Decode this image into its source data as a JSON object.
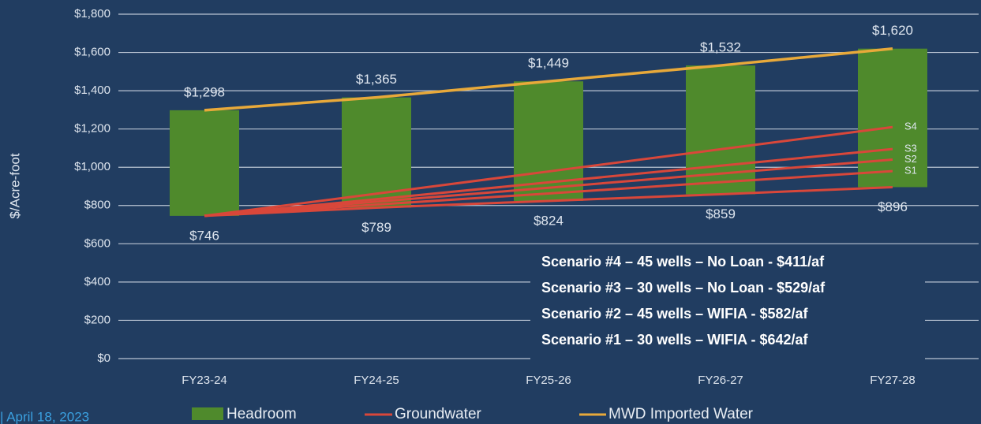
{
  "chart_data": {
    "type": "bar",
    "ylabel": "$/Acre-foot",
    "categories": [
      "FY23-24",
      "FY24-25",
      "FY25-26",
      "FY26-27",
      "FY27-28"
    ],
    "ylim": [
      0,
      1800
    ],
    "yticks": [
      {
        "value": 0,
        "label": "$0"
      },
      {
        "value": 200,
        "label": "$200"
      },
      {
        "value": 400,
        "label": "$400"
      },
      {
        "value": 600,
        "label": "$600"
      },
      {
        "value": 800,
        "label": "$800"
      },
      {
        "value": 1000,
        "label": "$1,000"
      },
      {
        "value": 1200,
        "label": "$1,200"
      },
      {
        "value": 1400,
        "label": "$1,400"
      },
      {
        "value": 1600,
        "label": "$1,600"
      },
      {
        "value": 1800,
        "label": "$1,800"
      }
    ],
    "grid": true,
    "series": [
      {
        "name": "Headroom",
        "color": "#4f8a2c",
        "type": "bar"
      },
      {
        "name": "Groundwater",
        "color": "#d9473a",
        "type": "line",
        "values": [
          746,
          789,
          824,
          859,
          896
        ],
        "value_labels": [
          "$746",
          "$789",
          "$824",
          "$859",
          "$896"
        ]
      },
      {
        "name": "MWD Imported Water",
        "color": "#e8a93a",
        "type": "line",
        "values": [
          1298,
          1365,
          1449,
          1532,
          1620
        ],
        "value_labels": [
          "$1,298",
          "$1,365",
          "$1,449",
          "$1,532",
          "$1,620"
        ]
      }
    ],
    "scenarios": [
      {
        "name": "S4",
        "values": [
          746,
          862,
          978,
          1094,
          1210
        ]
      },
      {
        "name": "S3",
        "values": [
          746,
          833,
          921,
          1008,
          1095
        ]
      },
      {
        "name": "S2",
        "values": [
          746,
          820,
          893,
          967,
          1040
        ]
      },
      {
        "name": "S1",
        "values": [
          746,
          805,
          863,
          922,
          980
        ]
      }
    ],
    "notes": [
      "Scenario #4 – 45 wells – No Loan - $411/af",
      "Scenario #3 – 30 wells – No Loan - $529/af",
      "Scenario #2 – 45 wells – WIFIA - $582/af",
      "Scenario #1 – 30 wells – WIFIA - $642/af"
    ],
    "footer": "| April 18, 2023"
  }
}
